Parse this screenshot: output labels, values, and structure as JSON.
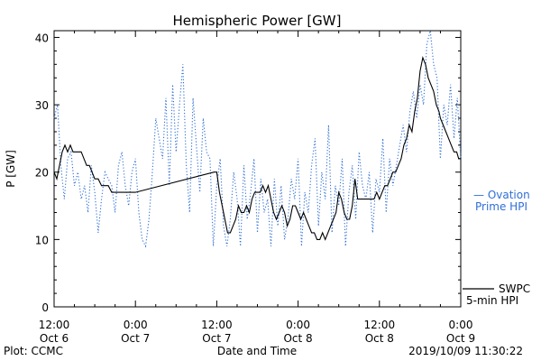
{
  "chart_data": {
    "type": "line",
    "title": "Hemispheric Power [GW]",
    "xlabel": "Date and Time",
    "ylabel": "P [GW]",
    "ylim": [
      0,
      41
    ],
    "yticks": [
      "0",
      "10",
      "20",
      "30",
      "40"
    ],
    "xtick_labels": [
      {
        "time": "12:00",
        "date": "Oct 6"
      },
      {
        "time": "0:00",
        "date": "Oct 7"
      },
      {
        "time": "12:00",
        "date": "Oct 7"
      },
      {
        "time": "0:00",
        "date": "Oct 8"
      },
      {
        "time": "12:00",
        "date": "Oct 8"
      },
      {
        "time": "0:00",
        "date": "Oct 9"
      }
    ],
    "xlim_hours": [
      0,
      60
    ],
    "legend": [
      {
        "line1": "— Ovation",
        "line2": "Prime HPI",
        "color": "#2f6fd6",
        "style": "dotted"
      },
      {
        "line1": "SWPC",
        "line2": "5-min HPI",
        "color": "#000000",
        "style": "solid"
      }
    ],
    "series": [
      {
        "name": "SWPC 5-min HPI",
        "color": "#000000",
        "x": [
          0,
          0.4,
          0.8,
          1.2,
          1.6,
          2.0,
          2.4,
          2.8,
          3.2,
          3.6,
          4.0,
          4.4,
          4.8,
          5.2,
          5.6,
          6.0,
          6.5,
          7.0,
          7.5,
          8.0,
          8.5,
          9.0,
          9.5,
          10.0,
          10.5,
          11.0,
          11.5,
          12.0,
          23.6,
          24.0,
          24.4,
          24.8,
          25.2,
          25.6,
          26.0,
          26.4,
          26.8,
          27.2,
          27.6,
          28.0,
          28.4,
          28.8,
          29.2,
          29.6,
          30.0,
          30.4,
          30.8,
          31.2,
          31.6,
          32.0,
          32.4,
          32.8,
          33.2,
          33.6,
          34.0,
          34.4,
          34.8,
          35.2,
          35.6,
          36.0,
          36.4,
          36.8,
          37.2,
          37.6,
          38.0,
          38.4,
          38.8,
          39.2,
          39.6,
          40.0,
          40.4,
          40.8,
          41.2,
          41.6,
          42.0,
          42.4,
          42.8,
          43.2,
          43.6,
          44.0,
          44.4,
          44.8,
          45.2,
          45.6,
          46.0,
          46.4,
          46.8,
          47.2,
          47.6,
          48.0,
          48.4,
          48.8,
          49.2,
          49.6,
          50.0,
          50.4,
          50.8,
          51.2,
          51.6,
          52.0,
          52.4,
          52.8,
          53.2,
          53.6,
          54.0,
          54.4,
          54.8,
          55.2,
          55.6,
          56.0,
          56.4,
          56.8,
          57.0,
          57.4,
          57.8,
          58.2,
          58.6,
          59.0,
          59.4,
          59.7,
          60.0
        ],
        "y": [
          20,
          19,
          21,
          23,
          24,
          23,
          24,
          23,
          23,
          23,
          23,
          22,
          21,
          21,
          20,
          19,
          19,
          18,
          18,
          18,
          17,
          17,
          17,
          17,
          17,
          17,
          17,
          17,
          20,
          20,
          17,
          15,
          13,
          11,
          11,
          12,
          13,
          15,
          14,
          14,
          15,
          14,
          16,
          17,
          17,
          17,
          18,
          17,
          18,
          16,
          14,
          13,
          14,
          15,
          14,
          12,
          13,
          15,
          15,
          14,
          13,
          14,
          13,
          12,
          11,
          11,
          10,
          10,
          11,
          10,
          11,
          12,
          13,
          14,
          17,
          16,
          14,
          13,
          13,
          15,
          19,
          16,
          16,
          16,
          16,
          16,
          16,
          16,
          17,
          16,
          17,
          18,
          18,
          19,
          20,
          20,
          21,
          22,
          24,
          25,
          27,
          26,
          29,
          31,
          35,
          37,
          36,
          34,
          33,
          32,
          30,
          29,
          28,
          27,
          26,
          25,
          24,
          23,
          23,
          22,
          22
        ]
      },
      {
        "name": "Ovation Prime HPI",
        "color": "#2f6fd6",
        "x": [
          0,
          0.5,
          1.0,
          1.5,
          2.0,
          2.5,
          3.0,
          3.5,
          4.0,
          4.5,
          5.0,
          5.5,
          6.0,
          6.5,
          7.0,
          7.5,
          8.0,
          8.5,
          9.0,
          9.5,
          10.0,
          10.5,
          11.0,
          11.5,
          12.0,
          12.5,
          13.0,
          13.5,
          14.0,
          14.5,
          15.0,
          15.5,
          16.0,
          16.5,
          17.0,
          17.5,
          18.0,
          18.5,
          19.0,
          19.5,
          20.0,
          20.5,
          21.0,
          21.5,
          22.0,
          22.5,
          23.0,
          23.5,
          24.0,
          24.5,
          25.0,
          25.5,
          26.0,
          26.5,
          27.0,
          27.5,
          28.0,
          28.5,
          29.0,
          29.5,
          30.0,
          30.5,
          31.0,
          31.5,
          32.0,
          32.5,
          33.0,
          33.5,
          34.0,
          34.5,
          35.0,
          35.5,
          36.0,
          36.5,
          37.0,
          37.5,
          38.0,
          38.5,
          39.0,
          39.5,
          40.0,
          40.5,
          41.0,
          41.5,
          42.0,
          42.5,
          43.0,
          43.5,
          44.0,
          44.5,
          45.0,
          45.5,
          46.0,
          46.5,
          47.0,
          47.5,
          48.0,
          48.5,
          49.0,
          49.5,
          50.0,
          50.5,
          51.0,
          51.5,
          52.0,
          52.5,
          53.0,
          53.5,
          54.0,
          54.5,
          55.0,
          55.5,
          56.0,
          56.5,
          57.0,
          57.5,
          58.0,
          58.5,
          59.0,
          59.5,
          60.0
        ],
        "y": [
          28,
          30,
          21,
          16,
          22,
          23,
          18,
          20,
          16,
          18,
          14,
          21,
          17,
          11,
          16,
          20,
          19,
          18,
          14,
          21,
          23,
          18,
          15,
          20,
          22,
          14,
          10,
          9,
          13,
          20,
          28,
          25,
          22,
          31,
          18,
          33,
          23,
          30,
          36,
          21,
          14,
          31,
          24,
          17,
          28,
          23,
          22,
          9,
          18,
          22,
          12,
          9,
          13,
          20,
          16,
          9,
          21,
          13,
          17,
          22,
          11,
          19,
          14,
          16,
          9,
          19,
          12,
          18,
          10,
          13,
          19,
          16,
          22,
          9,
          17,
          14,
          21,
          25,
          12,
          20,
          16,
          27,
          11,
          18,
          15,
          22,
          9,
          17,
          21,
          13,
          23,
          18,
          16,
          20,
          11,
          19,
          17,
          25,
          14,
          22,
          18,
          21,
          24,
          27,
          23,
          29,
          32,
          28,
          33,
          30,
          39,
          41,
          36,
          34,
          22,
          30,
          27,
          33,
          25,
          31,
          22
        ]
      }
    ]
  },
  "footer": {
    "left": "Plot: CCMC",
    "right": "2019/10/09 11:30:22"
  },
  "colors": {
    "ovation": "#2f6fd6",
    "swpc": "#000000",
    "axes": "#000000"
  }
}
